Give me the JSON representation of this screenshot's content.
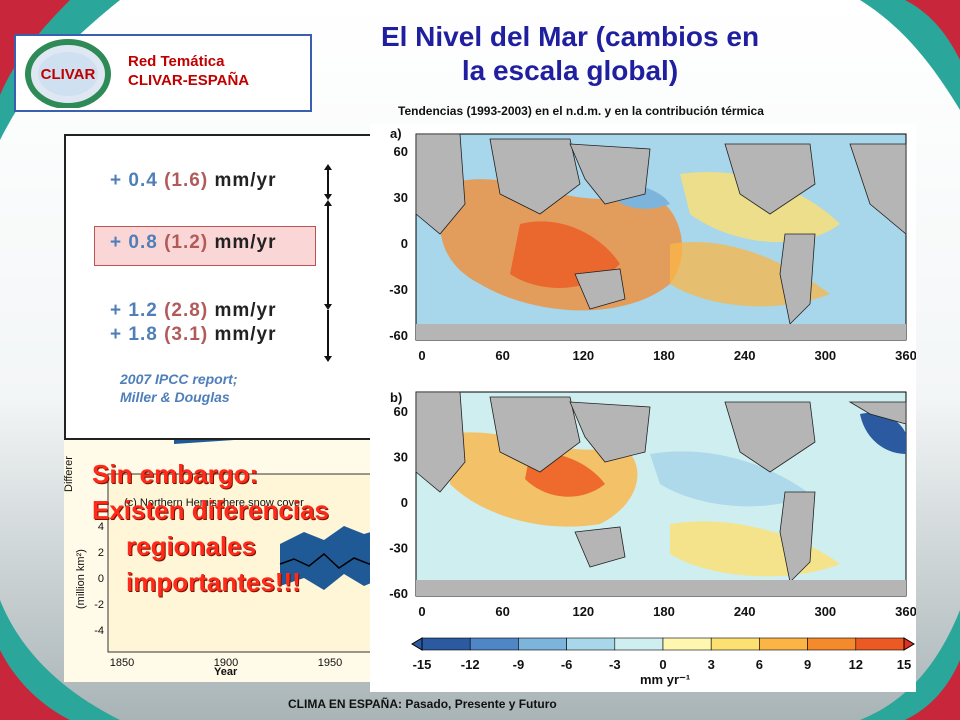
{
  "header": {
    "logo_line1": "Red Temática",
    "logo_line2": "CLIVAR-ESPAÑA",
    "logo_brand": "CLIVAR",
    "title_line1": "El Nivel del Mar (cambios en",
    "title_line2": "la escala global)",
    "subtitle": "Tendencias (1993-2003) en el n.d.m. y en la contribución térmica"
  },
  "ipcc_panel": {
    "rows": [
      {
        "value": "+ 0.4",
        "range": "(1.6)",
        "unit": "mm/yr"
      },
      {
        "value": "+ 0.8",
        "range": "(1.2)",
        "unit": "mm/yr"
      },
      {
        "value": "+ 1.2",
        "range": "(2.8)",
        "unit": "mm/yr"
      },
      {
        "value": "+ 1.8",
        "range": "(3.1)",
        "unit": "mm/yr"
      }
    ],
    "note_line1": "2007 IPCC report;",
    "note_line2": "Miller & Douglas"
  },
  "snow_chart": {
    "ylabel_top": "Differer",
    "panel_label": "(c) Northern Hemisphere snow cover",
    "ylabel": "(million km²)",
    "xlabel": "Year",
    "y_ticks": [
      "4",
      "2",
      "0",
      "-2",
      "-4"
    ],
    "x_ticks": [
      "1850",
      "1900",
      "1950"
    ]
  },
  "message": {
    "line1": "Sin embargo:",
    "line2": "Existen diferencias",
    "line3": "regionales",
    "line4": "importantes!!!"
  },
  "maps": {
    "panel_a": "a)",
    "panel_b": "b)",
    "lat_ticks": [
      "60",
      "30",
      "0",
      "-30",
      "-60"
    ],
    "lon_ticks": [
      "0",
      "60",
      "120",
      "180",
      "240",
      "300",
      "360"
    ]
  },
  "colorbar": {
    "ticks": [
      "-15",
      "-12",
      "-9",
      "-6",
      "-3",
      "0",
      "3",
      "6",
      "9",
      "12",
      "15"
    ],
    "unit": "mm yr⁻¹",
    "colors": [
      "#2c5aa0",
      "#4f86c6",
      "#7cb4dc",
      "#a8d6ea",
      "#cfeef0",
      "#fff7b0",
      "#fde072",
      "#fbb545",
      "#f58a2c",
      "#ec5a23"
    ]
  },
  "footer": "CLIMA EN ESPAÑA: Pasado, Presente y Futuro",
  "theme": {
    "title_color": "#1f1fa0",
    "accent_red": "#ff2a1a",
    "logo_red": "#c00000"
  }
}
